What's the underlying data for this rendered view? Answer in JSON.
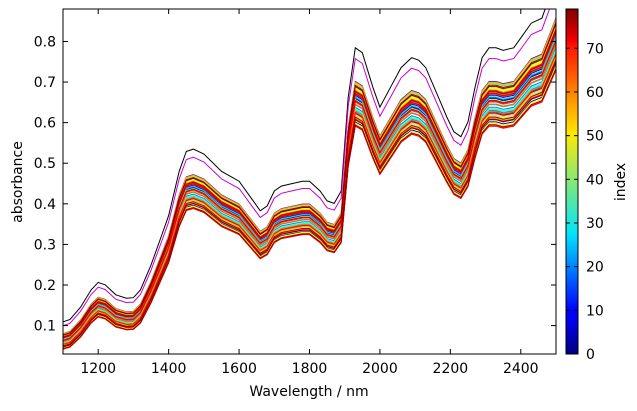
{
  "chart_data": {
    "type": "line",
    "title": "",
    "xlabel": "Wavelength / nm",
    "ylabel": "absorbance",
    "xlim": [
      1100,
      2500
    ],
    "ylim": [
      0.03,
      0.88
    ],
    "xticks": [
      1200,
      1400,
      1600,
      1800,
      2000,
      2200,
      2400
    ],
    "yticks": [
      0.1,
      0.2,
      0.3,
      0.4,
      0.5,
      0.6,
      0.7,
      0.8
    ],
    "grid": false,
    "legend": "none",
    "colorbar": {
      "label": "index",
      "range": [
        0,
        79
      ],
      "ticks": [
        0,
        10,
        20,
        30,
        40,
        50,
        60,
        70
      ],
      "colormap": "jet"
    },
    "series_count": 80,
    "reference_spectrum": {
      "x": [
        1100,
        1120,
        1150,
        1180,
        1200,
        1220,
        1250,
        1280,
        1300,
        1320,
        1350,
        1380,
        1400,
        1430,
        1450,
        1470,
        1500,
        1550,
        1600,
        1640,
        1660,
        1680,
        1700,
        1720,
        1750,
        1780,
        1800,
        1830,
        1850,
        1870,
        1890,
        1910,
        1930,
        1950,
        1980,
        2000,
        2030,
        2060,
        2090,
        2110,
        2130,
        2160,
        2190,
        2210,
        2230,
        2250,
        2270,
        2290,
        2310,
        2330,
        2350,
        2380,
        2400,
        2430,
        2460,
        2490,
        2500
      ],
      "y": [
        0.045,
        0.05,
        0.075,
        0.11,
        0.125,
        0.12,
        0.1,
        0.093,
        0.094,
        0.11,
        0.16,
        0.22,
        0.26,
        0.35,
        0.39,
        0.395,
        0.385,
        0.35,
        0.33,
        0.29,
        0.27,
        0.28,
        0.31,
        0.32,
        0.325,
        0.33,
        0.33,
        0.31,
        0.29,
        0.285,
        0.31,
        0.5,
        0.6,
        0.59,
        0.52,
        0.48,
        0.52,
        0.56,
        0.58,
        0.575,
        0.56,
        0.51,
        0.46,
        0.43,
        0.42,
        0.45,
        0.52,
        0.58,
        0.6,
        0.6,
        0.595,
        0.6,
        0.62,
        0.65,
        0.66,
        0.72,
        0.74
      ]
    },
    "offset_range": [
      -0.03,
      0.12
    ]
  }
}
